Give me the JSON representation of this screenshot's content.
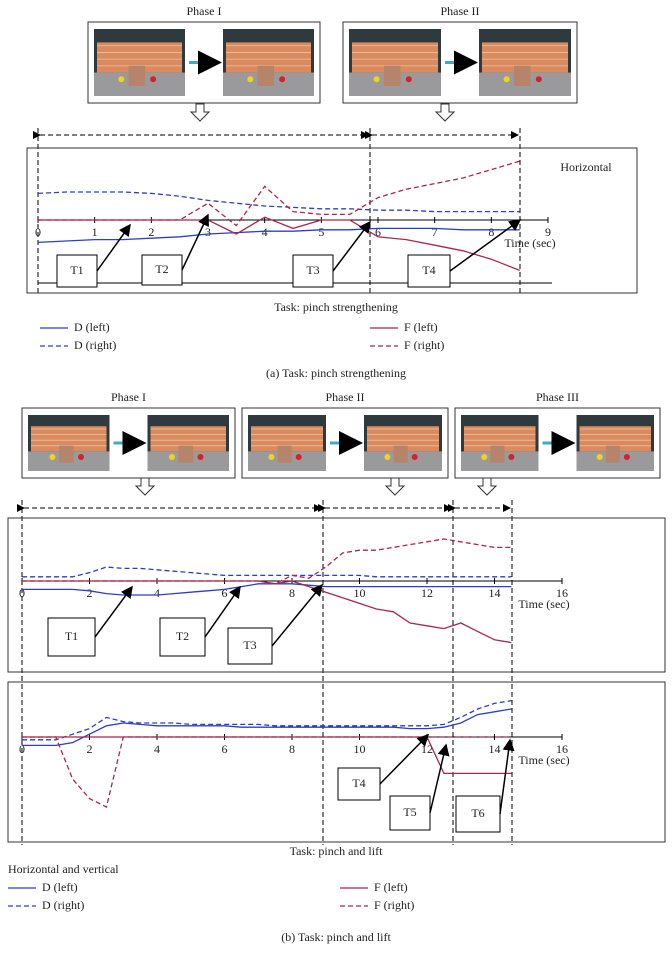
{
  "panels": [
    {
      "phases": [
        "Phase I",
        "Phase II"
      ],
      "task": "Task: pinch strengthening",
      "caption": "(a)  Task: pinch strengthening"
    },
    {
      "phases": [
        "Phase I",
        "Phase II",
        "Phase III"
      ],
      "task": "Task: pinch and lift",
      "legend_title": "Horizontal and vertical",
      "caption": "(b)  Task: pinch and lift"
    }
  ],
  "chart_data": [
    {
      "type": "line",
      "title": "Horizontal",
      "x_label": "Time (sec)",
      "x": [
        0,
        0.5,
        1,
        1.5,
        2,
        2.5,
        3,
        3.5,
        4,
        4.5,
        5,
        5.5,
        6,
        6.5,
        7,
        7.5,
        8,
        8.5
      ],
      "xlim": [
        0,
        9
      ],
      "xticks": [
        0,
        1,
        2,
        3,
        4,
        5,
        6,
        7,
        8,
        9
      ],
      "ylim": [
        -2.5,
        2.5
      ],
      "annotations": [
        "T1",
        "T2",
        "T3",
        "T4"
      ],
      "series": [
        {
          "name": "D (left)",
          "color": "#2c3fc4",
          "dashed": false,
          "values": [
            -0.8,
            -0.75,
            -0.7,
            -0.7,
            -0.65,
            -0.6,
            -0.5,
            -0.45,
            -0.4,
            -0.4,
            -0.35,
            -0.35,
            -0.3,
            -0.3,
            -0.3,
            -0.35,
            -0.35,
            -0.35
          ]
        },
        {
          "name": "D (right)",
          "color": "#2c3fc4",
          "dashed": true,
          "values": [
            0.95,
            1.0,
            1.0,
            1.0,
            0.95,
            0.85,
            0.7,
            0.6,
            0.5,
            0.45,
            0.4,
            0.4,
            0.35,
            0.35,
            0.3,
            0.3,
            0.3,
            0.3
          ]
        },
        {
          "name": "F (left)",
          "color": "#a8284a",
          "dashed": false,
          "values": [
            0,
            0,
            0,
            0,
            0,
            0,
            0,
            -0.5,
            0.1,
            -0.3,
            0,
            0,
            -0.6,
            -0.7,
            -0.9,
            -1.1,
            -1.4,
            -1.8
          ]
        },
        {
          "name": "F (right)",
          "color": "#a8284a",
          "dashed": true,
          "values": [
            0,
            0,
            0,
            0,
            0,
            0,
            0.6,
            -0.2,
            1.2,
            0.3,
            0.2,
            0.2,
            0.8,
            1.1,
            1.3,
            1.5,
            1.8,
            2.1
          ]
        }
      ]
    },
    {
      "type": "line",
      "x_label": "Time (sec)",
      "x": [
        0,
        0.5,
        1,
        1.5,
        2,
        2.5,
        3,
        3.5,
        4,
        4.5,
        5,
        5.5,
        6,
        6.5,
        7,
        7.5,
        8,
        8.5,
        9,
        9.5,
        10,
        10.5,
        11,
        11.5,
        12,
        12.5,
        13,
        13.5,
        14,
        14.5
      ],
      "xlim": [
        0,
        16
      ],
      "xticks": [
        0,
        2,
        4,
        6,
        8,
        10,
        12,
        14,
        16
      ],
      "ylim": [
        -3,
        2
      ],
      "annotations": [
        "T1",
        "T2",
        "T3"
      ],
      "series": [
        {
          "name": "D (left)",
          "color": "#2c3fc4",
          "dashed": false,
          "values": [
            -0.3,
            -0.3,
            -0.3,
            -0.3,
            -0.35,
            -0.45,
            -0.5,
            -0.5,
            -0.5,
            -0.45,
            -0.4,
            -0.35,
            -0.3,
            -0.2,
            -0.1,
            -0.1,
            -0.1,
            -0.15,
            -0.2,
            -0.2,
            -0.2,
            -0.2,
            -0.2,
            -0.2,
            -0.2,
            -0.2,
            -0.2,
            -0.2,
            -0.2,
            -0.2
          ]
        },
        {
          "name": "D (right)",
          "color": "#2c3fc4",
          "dashed": true,
          "values": [
            0.15,
            0.15,
            0.15,
            0.15,
            0.3,
            0.5,
            0.45,
            0.45,
            0.4,
            0.35,
            0.3,
            0.25,
            0.2,
            0.2,
            0.2,
            0.2,
            0.2,
            0.2,
            0.2,
            0.2,
            0.2,
            0.15,
            0.15,
            0.15,
            0.15,
            0.15,
            0.15,
            0.15,
            0.15,
            0.15
          ]
        },
        {
          "name": "F (left)",
          "color": "#a8284a",
          "dashed": false,
          "values": [
            0,
            0,
            0,
            0,
            0,
            0,
            0,
            0,
            0,
            0,
            0,
            0,
            0,
            0,
            0,
            -0.1,
            0,
            -0.2,
            -0.4,
            -0.6,
            -0.8,
            -1.0,
            -1.1,
            -1.5,
            -1.6,
            -1.7,
            -1.5,
            -1.8,
            -2.1,
            -2.2
          ]
        },
        {
          "name": "F (right)",
          "color": "#a8284a",
          "dashed": true,
          "values": [
            0,
            0,
            0,
            0,
            0,
            0,
            0,
            0,
            0,
            0,
            0,
            0,
            0,
            0,
            0,
            -0.1,
            0.2,
            0.1,
            0.5,
            1.0,
            1.1,
            1.1,
            1.2,
            1.3,
            1.4,
            1.5,
            1.4,
            1.3,
            1.2,
            1.2
          ]
        }
      ]
    },
    {
      "type": "line",
      "x_label": "Time (sec)",
      "x": [
        0,
        0.5,
        1,
        1.5,
        2,
        2.5,
        3,
        3.5,
        4,
        4.5,
        5,
        5.5,
        6,
        6.5,
        7,
        7.5,
        8,
        8.5,
        9,
        9.5,
        10,
        10.5,
        11,
        11.5,
        12,
        12.5,
        13,
        13.5,
        14,
        14.5
      ],
      "xlim": [
        0,
        16
      ],
      "xticks": [
        0,
        2,
        4,
        6,
        8,
        10,
        12,
        14,
        16
      ],
      "ylim": [
        -3.5,
        1.5
      ],
      "annotations": [
        "T4",
        "T5",
        "T6"
      ],
      "series": [
        {
          "name": "D (left)",
          "color": "#2c3fc4",
          "dashed": false,
          "values": [
            -0.3,
            -0.3,
            -0.3,
            -0.2,
            0.1,
            0.4,
            0.5,
            0.45,
            0.4,
            0.4,
            0.4,
            0.4,
            0.4,
            0.35,
            0.35,
            0.35,
            0.35,
            0.35,
            0.35,
            0.35,
            0.35,
            0.35,
            0.35,
            0.3,
            0.3,
            0.35,
            0.5,
            0.8,
            0.9,
            1.0
          ]
        },
        {
          "name": "D (right)",
          "color": "#2c3fc4",
          "dashed": true,
          "values": [
            -0.1,
            -0.1,
            -0.1,
            0.1,
            0.3,
            0.7,
            0.55,
            0.5,
            0.5,
            0.5,
            0.45,
            0.45,
            0.45,
            0.45,
            0.45,
            0.4,
            0.4,
            0.4,
            0.4,
            0.4,
            0.4,
            0.4,
            0.4,
            0.4,
            0.4,
            0.45,
            0.7,
            1.0,
            1.2,
            1.3
          ]
        },
        {
          "name": "F (left)",
          "color": "#a8284a",
          "dashed": false,
          "values": [
            0,
            0,
            0,
            0,
            0,
            0,
            0,
            0,
            0,
            0,
            0,
            0,
            0,
            0,
            0,
            0,
            0,
            0,
            0,
            0,
            0,
            0,
            0,
            0,
            0,
            -1.3,
            -1.3,
            -1.3,
            -1.3,
            -1.3
          ]
        },
        {
          "name": "F (right)",
          "color": "#a8284a",
          "dashed": true,
          "values": [
            0,
            0,
            0,
            -1.5,
            -2.2,
            -2.5,
            0,
            0,
            0,
            0,
            0,
            0,
            0,
            0,
            0,
            0,
            0,
            0,
            0,
            0,
            0,
            0,
            0,
            0,
            0,
            0,
            0,
            0,
            0,
            0
          ]
        }
      ]
    }
  ]
}
